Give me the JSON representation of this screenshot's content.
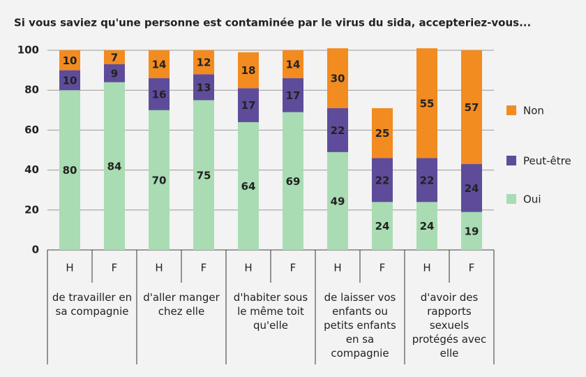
{
  "chart_data": {
    "type": "stacked-bar",
    "title": "Si vous saviez qu'une personne est contaminée par le virus du sida, accepteriez-vous...",
    "categories": [
      "H",
      "F",
      "H",
      "F",
      "H",
      "F",
      "H",
      "F",
      "H",
      "F"
    ],
    "groups": [
      "de travailler en sa compagnie",
      "d'aller manger chez elle",
      "d'habiter sous le même toit qu'elle",
      "de laisser vos enfants ou petits enfants en sa compagnie",
      "d'avoir des rapports sexuels protégés avec elle"
    ],
    "series": [
      {
        "name": "Oui",
        "color": "#a9dcb3",
        "values": [
          80,
          84,
          70,
          75,
          64,
          69,
          49,
          24,
          24,
          19
        ]
      },
      {
        "name": "Peut-être",
        "color": "#5e4c9b",
        "values": [
          10,
          9,
          16,
          13,
          17,
          17,
          22,
          22,
          22,
          24
        ]
      },
      {
        "name": "Non",
        "color": "#f28b20",
        "values": [
          10,
          7,
          14,
          12,
          18,
          14,
          30,
          25,
          55,
          57
        ]
      }
    ],
    "ylim": [
      0,
      100
    ],
    "yticks": [
      0,
      20,
      40,
      60,
      80,
      100
    ],
    "grid": true,
    "legend": "right"
  }
}
